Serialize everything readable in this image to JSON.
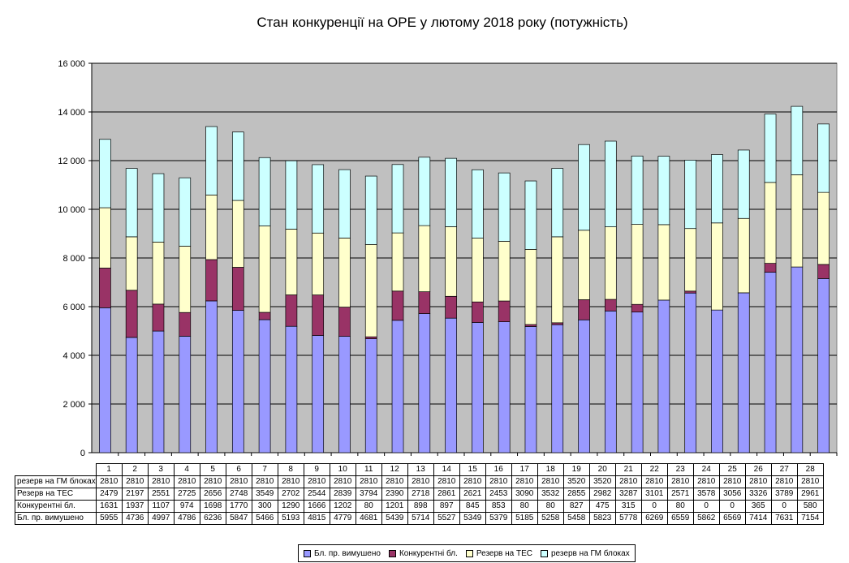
{
  "chart_data": {
    "type": "bar",
    "stacked": true,
    "title": "Стан конкуренції на ОРЕ  у лютому 2018 року (потужність)",
    "categories": [
      "1",
      "2",
      "3",
      "4",
      "5",
      "6",
      "7",
      "8",
      "9",
      "10",
      "11",
      "12",
      "13",
      "14",
      "15",
      "16",
      "17",
      "18",
      "19",
      "20",
      "21",
      "22",
      "23",
      "24",
      "25",
      "26",
      "27",
      "28"
    ],
    "ylim": [
      0,
      16000
    ],
    "yticks": [
      "0",
      "2 000",
      "4 000",
      "6 000",
      "8 000",
      "10 000",
      "12 000",
      "14 000",
      "16 000"
    ],
    "grid": true,
    "legend_position": "bottom",
    "plot_background": "#c0c0c0",
    "series": [
      {
        "name": "Бл. пр. вимушено",
        "table_label": "Бл. пр. вимушено",
        "color": "#9999ff",
        "values": [
          5955,
          4736,
          4997,
          4786,
          6236,
          5847,
          5466,
          5193,
          4815,
          4779,
          4681,
          5439,
          5714,
          5527,
          5349,
          5379,
          5185,
          5258,
          5458,
          5823,
          5778,
          6269,
          6559,
          5862,
          6569,
          7414,
          7631,
          7154
        ]
      },
      {
        "name": "Конкурентні бл.",
        "table_label": "Конкурентні бл.",
        "color": "#993366",
        "values": [
          1631,
          1937,
          1107,
          974,
          1698,
          1770,
          300,
          1290,
          1666,
          1202,
          80,
          1201,
          898,
          897,
          845,
          853,
          80,
          80,
          827,
          475,
          315,
          0,
          80,
          0,
          0,
          365,
          0,
          580
        ]
      },
      {
        "name": "Резерв на ТЕС",
        "table_label": "Резерв на ТЕС",
        "color": "#ffffcc",
        "values": [
          2479,
          2197,
          2551,
          2725,
          2656,
          2748,
          3549,
          2702,
          2544,
          2839,
          3794,
          2390,
          2718,
          2861,
          2621,
          2453,
          3090,
          3532,
          2855,
          2982,
          3287,
          3101,
          2571,
          3578,
          3056,
          3326,
          3789,
          2961
        ]
      },
      {
        "name": "резерв на ГМ блоках",
        "table_label": "резерв на ГМ блоках",
        "color": "#ccffff",
        "values": [
          2810,
          2810,
          2810,
          2810,
          2810,
          2810,
          2810,
          2810,
          2810,
          2810,
          2810,
          2810,
          2810,
          2810,
          2810,
          2810,
          2810,
          2810,
          3520,
          3520,
          2810,
          2810,
          2810,
          2810,
          2810,
          2810,
          2810,
          2810
        ]
      }
    ],
    "table_row_order": [
      3,
      2,
      1,
      0
    ]
  }
}
